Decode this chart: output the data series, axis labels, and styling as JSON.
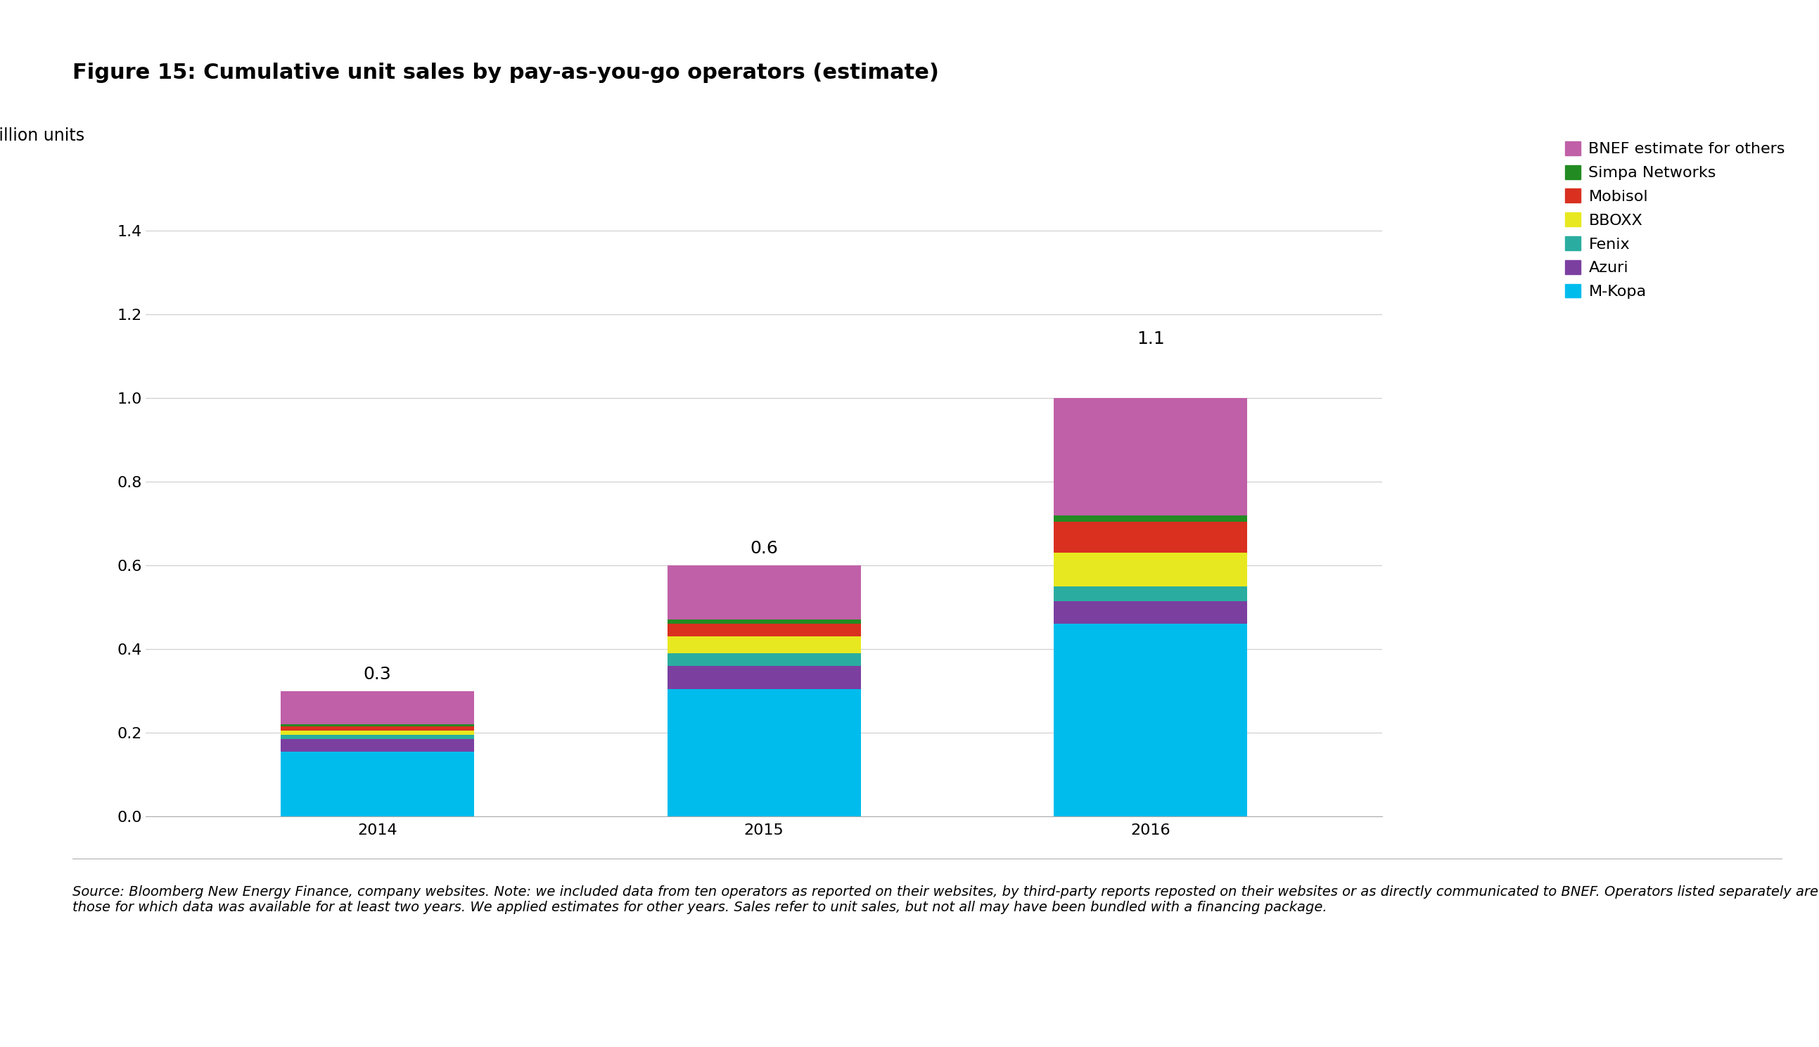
{
  "title": "Figure 15: Cumulative unit sales by pay-as-you-go operators (estimate)",
  "ylabel": "Million units",
  "years": [
    "2014",
    "2015",
    "2016"
  ],
  "totals": [
    0.3,
    0.6,
    1.1
  ],
  "segments": {
    "M-Kopa": {
      "values": [
        0.155,
        0.305,
        0.46
      ],
      "color": "#00BCED"
    },
    "Azuri": {
      "values": [
        0.03,
        0.055,
        0.055
      ],
      "color": "#7B3FA0"
    },
    "Fenix": {
      "values": [
        0.01,
        0.03,
        0.035
      ],
      "color": "#2AADA0"
    },
    "BBOXX": {
      "values": [
        0.01,
        0.04,
        0.08
      ],
      "color": "#E8E820"
    },
    "Mobisol": {
      "values": [
        0.01,
        0.03,
        0.075
      ],
      "color": "#D93020"
    },
    "Simpa Networks": {
      "values": [
        0.005,
        0.01,
        0.015
      ],
      "color": "#228B22"
    },
    "BNEF estimate for others": {
      "values": [
        0.08,
        0.13,
        0.28
      ],
      "color": "#C060A8"
    }
  },
  "segment_order": [
    "M-Kopa",
    "Azuri",
    "Fenix",
    "BBOXX",
    "Mobisol",
    "Simpa Networks",
    "BNEF estimate for others"
  ],
  "ylim": [
    0,
    1.5
  ],
  "yticks": [
    0.0,
    0.2,
    0.4,
    0.6,
    0.8,
    1.0,
    1.2,
    1.4
  ],
  "bar_width": 0.5,
  "background_color": "#FFFFFF",
  "grid_color": "#CCCCCC",
  "source_text": "Source: Bloomberg New Energy Finance, company websites. Note: we included data from ten operators as reported on their websites, by third-party reports reposted on their websites or as directly communicated to BNEF. Operators listed separately are those for which data was available for at least two years. We applied estimates for other years. Sales refer to unit sales, but not all may have been bundled with a financing package.",
  "title_fontsize": 22,
  "axis_label_fontsize": 17,
  "tick_fontsize": 16,
  "legend_fontsize": 16,
  "annotation_fontsize": 18,
  "source_fontsize": 14
}
